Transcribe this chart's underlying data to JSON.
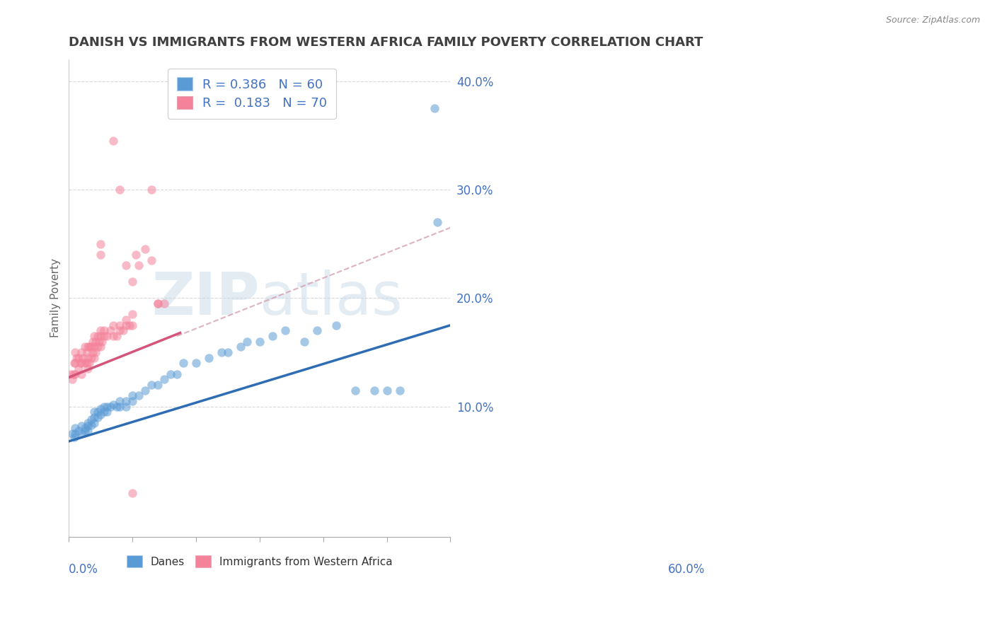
{
  "title": "DANISH VS IMMIGRANTS FROM WESTERN AFRICA FAMILY POVERTY CORRELATION CHART",
  "source": "Source: ZipAtlas.com",
  "ylabel": "Family Poverty",
  "xlim": [
    0.0,
    0.6
  ],
  "ylim": [
    -0.02,
    0.42
  ],
  "ytick_positions": [
    0.1,
    0.2,
    0.3,
    0.4
  ],
  "ytick_labels": [
    "10.0%",
    "20.0%",
    "30.0%",
    "40.0%"
  ],
  "xtick_positions": [
    0.0,
    0.1,
    0.2,
    0.3,
    0.4,
    0.5,
    0.6
  ],
  "danes_color": "#5b9bd5",
  "danes_line_color": "#2e6db4",
  "immigrants_color": "#f4829a",
  "immigrants_line_color": "#d4547a",
  "dashed_color": "#d4a0b0",
  "danes_R": 0.386,
  "danes_N": 60,
  "immigrants_R": 0.183,
  "immigrants_N": 70,
  "watermark": "ZIPatlas",
  "background_color": "#ffffff",
  "grid_color": "#d8d8d8",
  "title_color": "#404040",
  "axis_label_color": "#4472c4",
  "scatter_alpha": 0.55,
  "scatter_size": 80,
  "danes_x": [
    0.005,
    0.008,
    0.01,
    0.01,
    0.015,
    0.02,
    0.02,
    0.025,
    0.025,
    0.03,
    0.03,
    0.03,
    0.035,
    0.035,
    0.04,
    0.04,
    0.04,
    0.045,
    0.045,
    0.05,
    0.05,
    0.055,
    0.055,
    0.06,
    0.06,
    0.065,
    0.07,
    0.075,
    0.08,
    0.08,
    0.09,
    0.09,
    0.1,
    0.1,
    0.11,
    0.12,
    0.13,
    0.14,
    0.15,
    0.16,
    0.17,
    0.18,
    0.2,
    0.22,
    0.24,
    0.25,
    0.27,
    0.28,
    0.3,
    0.32,
    0.34,
    0.37,
    0.39,
    0.42,
    0.45,
    0.48,
    0.5,
    0.52,
    0.575,
    0.58
  ],
  "danes_y": [
    0.075,
    0.072,
    0.08,
    0.075,
    0.078,
    0.075,
    0.082,
    0.078,
    0.08,
    0.078,
    0.082,
    0.085,
    0.083,
    0.088,
    0.085,
    0.09,
    0.095,
    0.09,
    0.095,
    0.093,
    0.098,
    0.095,
    0.1,
    0.1,
    0.095,
    0.1,
    0.102,
    0.1,
    0.1,
    0.105,
    0.1,
    0.105,
    0.105,
    0.11,
    0.11,
    0.115,
    0.12,
    0.12,
    0.125,
    0.13,
    0.13,
    0.14,
    0.14,
    0.145,
    0.15,
    0.15,
    0.155,
    0.16,
    0.16,
    0.165,
    0.17,
    0.16,
    0.17,
    0.175,
    0.115,
    0.115,
    0.115,
    0.115,
    0.375,
    0.27
  ],
  "imm_x": [
    0.003,
    0.005,
    0.007,
    0.008,
    0.01,
    0.01,
    0.01,
    0.012,
    0.015,
    0.015,
    0.018,
    0.02,
    0.02,
    0.02,
    0.022,
    0.025,
    0.025,
    0.028,
    0.028,
    0.03,
    0.03,
    0.03,
    0.032,
    0.032,
    0.035,
    0.035,
    0.038,
    0.038,
    0.04,
    0.04,
    0.04,
    0.042,
    0.042,
    0.045,
    0.045,
    0.048,
    0.05,
    0.05,
    0.05,
    0.052,
    0.055,
    0.055,
    0.06,
    0.065,
    0.07,
    0.07,
    0.075,
    0.08,
    0.08,
    0.085,
    0.09,
    0.09,
    0.095,
    0.1,
    0.1,
    0.1,
    0.105,
    0.11,
    0.12,
    0.13,
    0.13,
    0.14,
    0.14,
    0.15,
    0.05,
    0.05,
    0.07,
    0.08,
    0.09,
    0.1
  ],
  "imm_y": [
    0.13,
    0.125,
    0.13,
    0.14,
    0.13,
    0.14,
    0.15,
    0.145,
    0.135,
    0.145,
    0.14,
    0.13,
    0.14,
    0.15,
    0.145,
    0.14,
    0.155,
    0.14,
    0.15,
    0.135,
    0.145,
    0.155,
    0.14,
    0.155,
    0.145,
    0.155,
    0.15,
    0.16,
    0.145,
    0.155,
    0.165,
    0.15,
    0.16,
    0.155,
    0.165,
    0.16,
    0.155,
    0.165,
    0.17,
    0.16,
    0.165,
    0.17,
    0.165,
    0.17,
    0.165,
    0.175,
    0.165,
    0.17,
    0.175,
    0.17,
    0.175,
    0.18,
    0.175,
    0.185,
    0.215,
    0.175,
    0.24,
    0.23,
    0.245,
    0.235,
    0.3,
    0.195,
    0.195,
    0.195,
    0.24,
    0.25,
    0.345,
    0.3,
    0.23,
    0.02
  ],
  "danes_line_x": [
    0.0,
    0.6
  ],
  "danes_line_y": [
    0.068,
    0.175
  ],
  "imm_line_x": [
    0.0,
    0.175
  ],
  "imm_line_y": [
    0.127,
    0.168
  ],
  "dashed_line_x": [
    0.17,
    0.6
  ],
  "dashed_line_y": [
    0.165,
    0.265
  ]
}
